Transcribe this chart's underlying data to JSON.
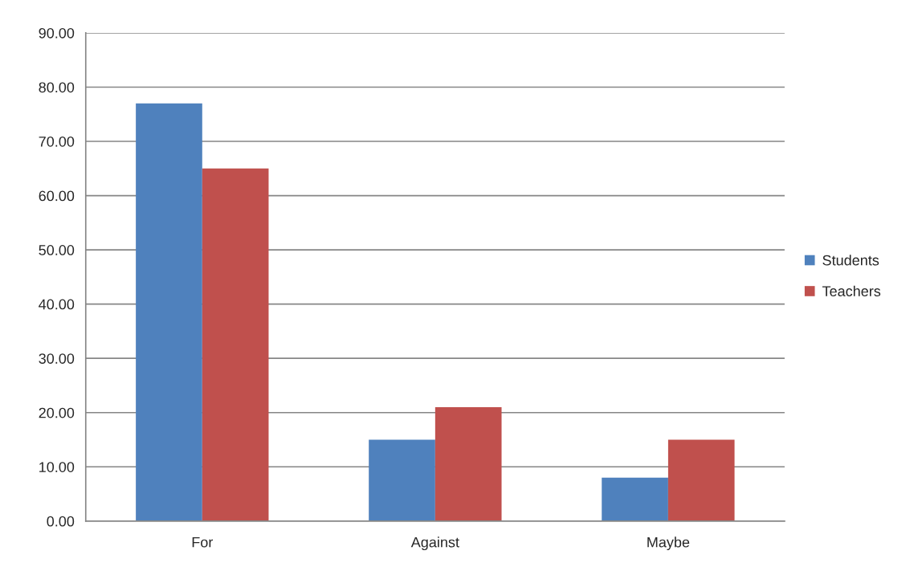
{
  "chart_data": {
    "type": "bar",
    "categories": [
      "For",
      "Against",
      "Maybe"
    ],
    "series": [
      {
        "name": "Students",
        "color": "#4f81bd",
        "values": [
          77,
          15,
          8
        ]
      },
      {
        "name": "Teachers",
        "color": "#c0504d",
        "values": [
          65,
          21,
          15
        ]
      }
    ],
    "ylim": [
      0,
      90
    ],
    "yticks": [
      {
        "value": 0,
        "label": "0.00"
      },
      {
        "value": 10,
        "label": "10.00"
      },
      {
        "value": 20,
        "label": "20.00"
      },
      {
        "value": 30,
        "label": "30.00"
      },
      {
        "value": 40,
        "label": "40.00"
      },
      {
        "value": 50,
        "label": "50.00"
      },
      {
        "value": 60,
        "label": "60.00"
      },
      {
        "value": 70,
        "label": "70.00"
      },
      {
        "value": 80,
        "label": "80.00"
      },
      {
        "value": 90,
        "label": "90.00"
      }
    ],
    "grid": "y",
    "legend": "right"
  }
}
